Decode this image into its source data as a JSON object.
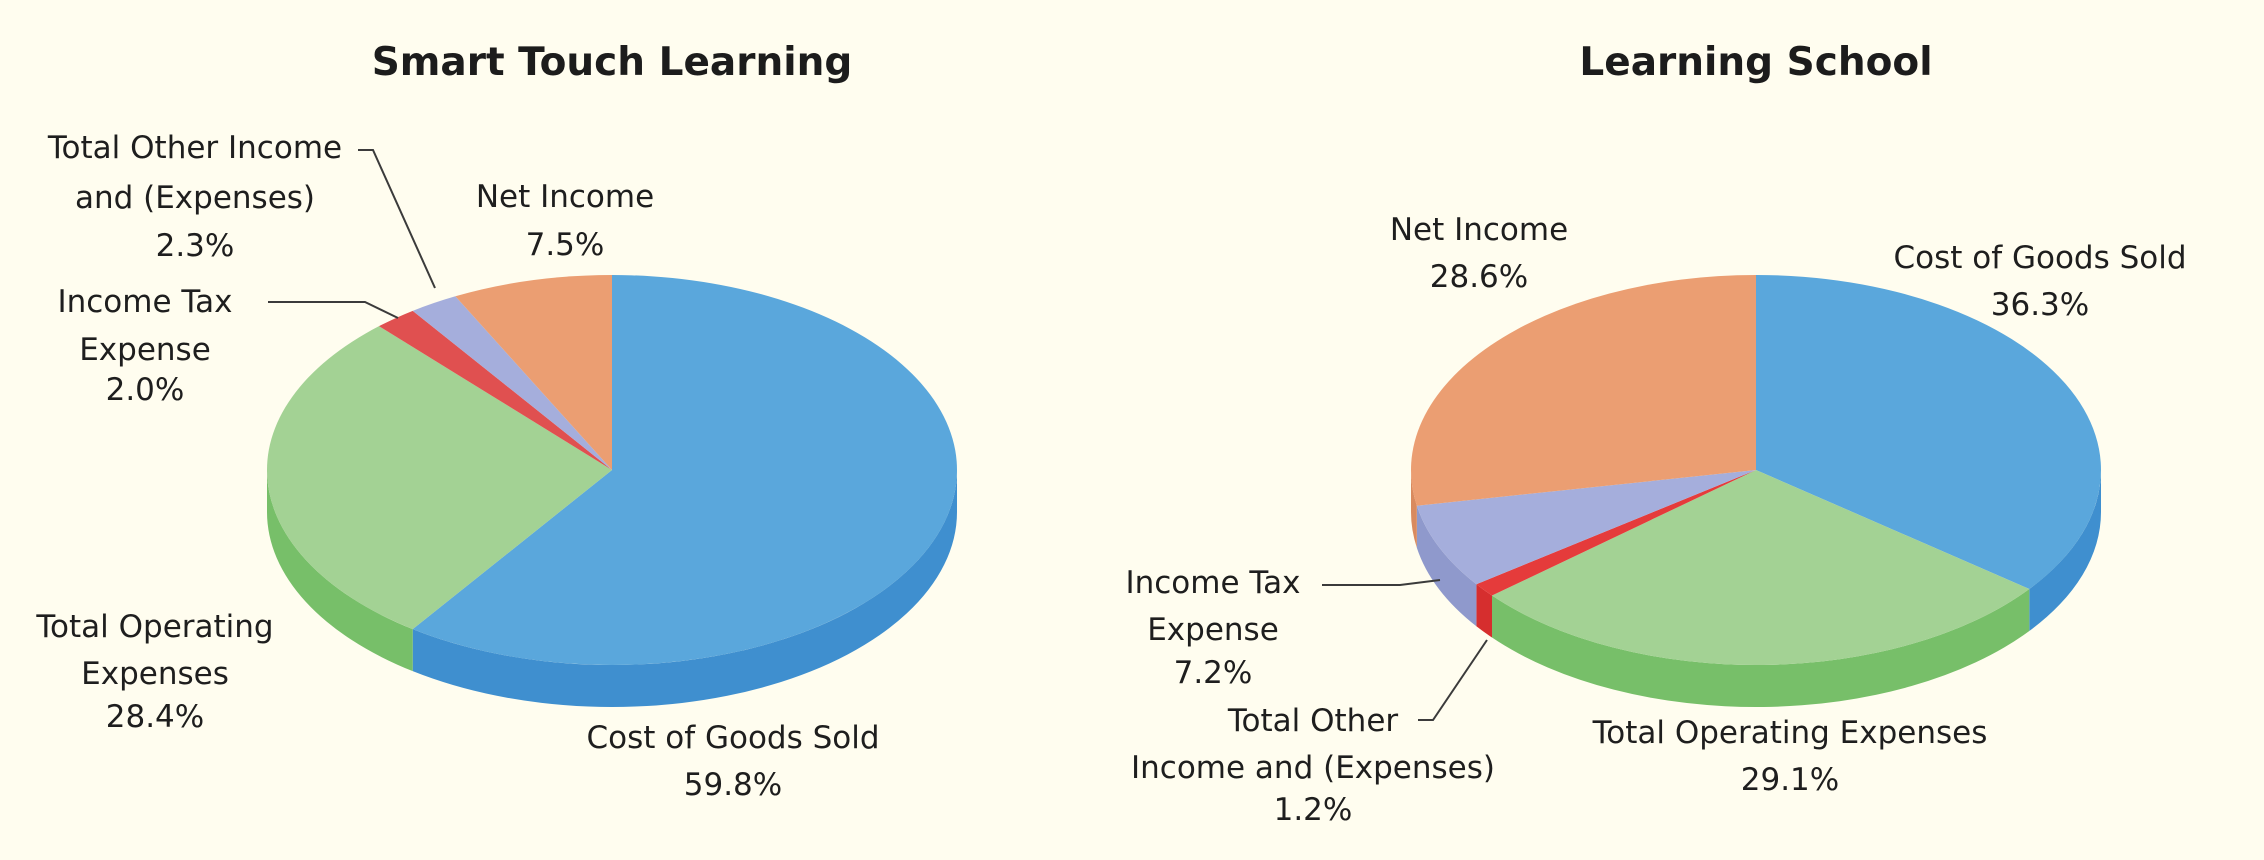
{
  "chart_data": [
    {
      "type": "pie",
      "title": "Smart Touch Learning",
      "slices": [
        {
          "key": "cogs",
          "label": "Cost of Goods Sold",
          "value": 59.8,
          "value_label": "59.8%",
          "color": "#5aa7dc",
          "side_color": "#3f8fcf"
        },
        {
          "key": "opex",
          "label": "Total Operating Expenses",
          "value": 28.4,
          "value_label": "28.4%",
          "color": "#a3d294",
          "side_color": "#77bf69"
        },
        {
          "key": "tax",
          "label": "Income Tax Expense",
          "value": 2.0,
          "value_label": "2.0%",
          "color": "#e05050",
          "side_color": "#d03838"
        },
        {
          "key": "other",
          "label": "Total Other Income and (Expenses)",
          "value": 2.3,
          "value_label": "2.3%",
          "color": "#a5aedc",
          "side_color": "#8f99cc"
        },
        {
          "key": "net",
          "label": "Net Income",
          "value": 7.5,
          "value_label": "7.5%",
          "color": "#eb9e72",
          "side_color": "#d98a5e"
        }
      ]
    },
    {
      "type": "pie",
      "title": "Learning School",
      "slices": [
        {
          "key": "cogs",
          "label": "Cost of Goods Sold",
          "value": 36.3,
          "value_label": "36.3%",
          "color": "#5aa7dc",
          "side_color": "#3f8fcf"
        },
        {
          "key": "opex",
          "label": "Total Operating Expenses",
          "value": 29.1,
          "value_label": "29.1%",
          "color": "#a3d294",
          "side_color": "#77bf69"
        },
        {
          "key": "other",
          "label": "Total Other Income and (Expenses)",
          "value": 1.2,
          "value_label": "1.2%",
          "color": "#e53b3b",
          "side_color": "#d62e2e"
        },
        {
          "key": "tax",
          "label": "Income Tax Expense",
          "value": 7.2,
          "value_label": "7.2%",
          "color": "#a5aedc",
          "side_color": "#8f99cc"
        },
        {
          "key": "net",
          "label": "Net Income",
          "value": 28.6,
          "value_label": "28.6%",
          "color": "#eb9e72",
          "side_color": "#d98a5e"
        }
      ]
    }
  ],
  "labels": {
    "stl": {
      "title": "Smart Touch Learning",
      "other_l1": "Total Other Income",
      "other_l2": "and (Expenses)",
      "other_pct": "2.3%",
      "net_l1": "Net Income",
      "net_pct": "7.5%",
      "tax_l1": "Income Tax",
      "tax_l2": "Expense",
      "tax_pct": "2.0%",
      "opex_l1": "Total Operating",
      "opex_l2": "Expenses",
      "opex_pct": "28.4%",
      "cogs_l1": "Cost of Goods Sold",
      "cogs_pct": "59.8%"
    },
    "ls": {
      "title": "Learning School",
      "net_l1": "Net Income",
      "net_pct": "28.6%",
      "cogs_l1": "Cost of Goods Sold",
      "cogs_pct": "36.3%",
      "tax_l1": "Income Tax",
      "tax_l2": "Expense",
      "tax_pct": "7.2%",
      "other_l1": "Total Other",
      "other_l2": "Income and (Expenses)",
      "other_pct": "1.2%",
      "opex_l1": "Total Operating Expenses",
      "opex_pct": "29.1%"
    }
  }
}
